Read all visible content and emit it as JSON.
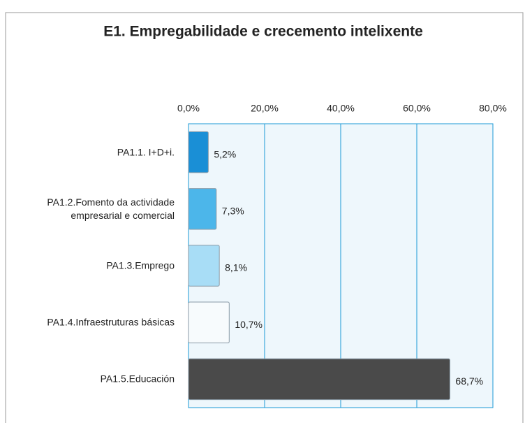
{
  "chart_data": {
    "type": "hbar",
    "title": "E1. Empregabilidade e crecemento intelixente",
    "categories": [
      "PA1.1. I+D+i.",
      "PA1.2.Fomento da actividade empresarial e comercial",
      "PA1.3.Emprego",
      "PA1.4.Infraestruturas básicas",
      "PA1.5.Educación"
    ],
    "values": [
      5.2,
      7.3,
      8.1,
      10.7,
      68.7
    ],
    "value_labels": [
      "5,2%",
      "7,3%",
      "8,1%",
      "10,7%",
      "68,7%"
    ],
    "colors": [
      "#1a8fd6",
      "#4cb6ea",
      "#a8ddf6",
      "#f7fbfd",
      "#4a4a4a"
    ],
    "xlim": [
      0,
      80
    ],
    "xticks": [
      {
        "value": 0,
        "label": "0,0%"
      },
      {
        "value": 20,
        "label": "20,0%"
      },
      {
        "value": 40,
        "label": "40,0%"
      },
      {
        "value": 60,
        "label": "60,0%"
      },
      {
        "value": 80,
        "label": "80,0%"
      }
    ],
    "grid": true
  }
}
